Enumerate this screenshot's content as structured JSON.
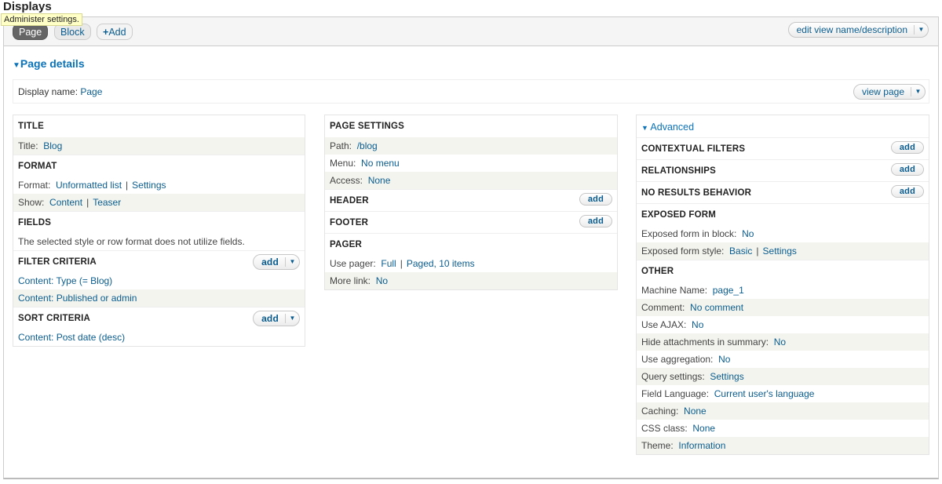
{
  "header": {
    "title": "Displays",
    "tooltip": "Administer settings."
  },
  "tabs": [
    {
      "label": "Page",
      "active": true
    },
    {
      "label": "Block",
      "active": false
    }
  ],
  "add_display": {
    "icon": "plus-icon",
    "label": "Add"
  },
  "edit_view": {
    "label": "edit view name/description"
  },
  "page_details": {
    "label": "Page details"
  },
  "display_name": {
    "label": "Display name:",
    "value": "Page"
  },
  "view_page": {
    "label": "view page"
  },
  "advanced": {
    "label": "Advanced"
  },
  "columns": [
    [
      {
        "title": "TITLE",
        "rows": [
          {
            "label": "Title:",
            "links": [
              "Blog"
            ],
            "s": true
          }
        ]
      },
      {
        "title": "FORMAT",
        "rows": [
          {
            "label": "Format:",
            "links": [
              "Unformatted list",
              "Settings"
            ]
          },
          {
            "label": "Show:",
            "links": [
              "Content",
              "Teaser"
            ],
            "s": true
          }
        ]
      },
      {
        "title": "FIELDS",
        "rows": [
          {
            "label": "The selected style or row format does not utilize fields.",
            "links": []
          }
        ]
      },
      {
        "title": "FILTER CRITERIA",
        "add": "add",
        "dropdown": true,
        "rows": [
          {
            "label": "",
            "links": [
              "Content: Type (= Blog)"
            ]
          },
          {
            "label": "",
            "links": [
              "Content: Published or admin"
            ],
            "s": true
          }
        ]
      },
      {
        "title": "SORT CRITERIA",
        "add": "add",
        "dropdown": true,
        "rows": [
          {
            "label": "",
            "links": [
              "Content: Post date (desc)"
            ]
          }
        ]
      }
    ],
    [
      {
        "title": "PAGE SETTINGS",
        "rows": [
          {
            "label": "Path:",
            "links": [
              "/blog"
            ],
            "s": true
          },
          {
            "label": "Menu:",
            "links": [
              "No menu"
            ]
          },
          {
            "label": "Access:",
            "links": [
              "None"
            ],
            "s": true
          }
        ]
      },
      {
        "title": "HEADER",
        "add": "add",
        "rows": []
      },
      {
        "title": "FOOTER",
        "add": "add",
        "rows": []
      },
      {
        "title": "PAGER",
        "rows": [
          {
            "label": "Use pager:",
            "links": [
              "Full",
              "Paged, 10 items"
            ]
          },
          {
            "label": "More link:",
            "links": [
              "No"
            ],
            "s": true
          }
        ]
      }
    ],
    [
      {
        "title": "CONTEXTUAL FILTERS",
        "add": "add",
        "rows": []
      },
      {
        "title": "RELATIONSHIPS",
        "add": "add",
        "rows": []
      },
      {
        "title": "NO RESULTS BEHAVIOR",
        "add": "add",
        "rows": []
      },
      {
        "title": "EXPOSED FORM",
        "rows": [
          {
            "label": "Exposed form in block:",
            "links": [
              "No"
            ]
          },
          {
            "label": "Exposed form style:",
            "links": [
              "Basic",
              "Settings"
            ],
            "s": true
          }
        ]
      },
      {
        "title": "OTHER",
        "rows": [
          {
            "label": "Machine Name:",
            "links": [
              "page_1"
            ]
          },
          {
            "label": "Comment:",
            "links": [
              "No comment"
            ],
            "s": true
          },
          {
            "label": "Use AJAX:",
            "links": [
              "No"
            ]
          },
          {
            "label": "Hide attachments in summary:",
            "links": [
              "No"
            ],
            "s": true
          },
          {
            "label": "Use aggregation:",
            "links": [
              "No"
            ]
          },
          {
            "label": "Query settings:",
            "links": [
              "Settings"
            ],
            "s": true
          },
          {
            "label": "Field Language:",
            "links": [
              "Current user's language"
            ]
          },
          {
            "label": "Caching:",
            "links": [
              "None"
            ],
            "s": true
          },
          {
            "label": "CSS class:",
            "links": [
              "None"
            ]
          },
          {
            "label": "Theme:",
            "links": [
              "Information"
            ],
            "s": true
          }
        ]
      }
    ]
  ]
}
